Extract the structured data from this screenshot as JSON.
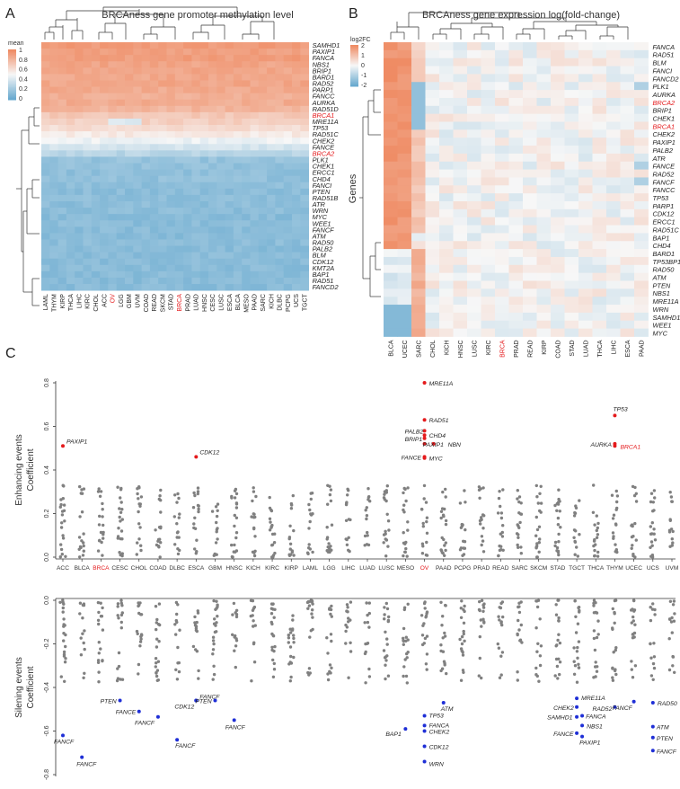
{
  "colors": {
    "meth_high": "#ef8a62",
    "meth_mid": "#f7f7f7",
    "meth_low": "#67a9cf",
    "highlight_red": "#e41a1c",
    "point_grey": "#808080",
    "point_red": "#e41a1c",
    "point_blue": "#1f2fd6"
  },
  "panel_letters": {
    "a": "A",
    "b": "B",
    "c": "C"
  },
  "chart_data": [
    {
      "id": "A",
      "type": "heatmap",
      "title": "BRCAness gene promoter methylation level",
      "legend_title": "mean",
      "legend_ticks": [
        "1",
        "0.8",
        "0.6",
        "0.4",
        "0.2",
        "0"
      ],
      "highlight_label": "BRCA1",
      "highlight_label_2": "BRCA2",
      "highlight_col": "OV",
      "highlight_col_2": "BRCA",
      "rows": [
        "SAMHD1",
        "PAXIP1",
        "FANCA",
        "NBS1",
        "BRIP1",
        "BARD1",
        "RAD52",
        "PARP1",
        "FANCC",
        "AURKA",
        "RAD51D",
        "BRCA1",
        "MRE11A",
        "TP53",
        "RAD51C",
        "CHEK2",
        "FANCE",
        "BRCA2",
        "PLK1",
        "CHEK1",
        "ERCC1",
        "CHD4",
        "FANCI",
        "PTEN",
        "RAD51B",
        "ATR",
        "WRN",
        "MYC",
        "WEE1",
        "FANCF",
        "ATM",
        "RAD50",
        "PALB2",
        "BLM",
        "CDK12",
        "KMT2A",
        "BAP1",
        "RAD51",
        "FANCD2"
      ],
      "columns": [
        "LAML",
        "THYM",
        "KIRP",
        "THCA",
        "LIHC",
        "KIRC",
        "CHOL",
        "ACC",
        "OV",
        "LGG",
        "GBM",
        "UVM",
        "COAD",
        "READ",
        "SKCM",
        "STAD",
        "BRCA",
        "PRAD",
        "LUAD",
        "HNSC",
        "CESC",
        "LUSC",
        "ESCA",
        "BLCA",
        "MESO",
        "PAAD",
        "SARC",
        "KICH",
        "DLBC",
        "PCPG",
        "UCS",
        "TGCT"
      ],
      "row_means": [
        0.92,
        0.9,
        0.91,
        0.88,
        0.87,
        0.86,
        0.87,
        0.85,
        0.83,
        0.84,
        0.8,
        0.72,
        0.68,
        0.62,
        0.56,
        0.47,
        0.38,
        0.28,
        0.16,
        0.15,
        0.14,
        0.15,
        0.14,
        0.13,
        0.14,
        0.13,
        0.13,
        0.12,
        0.12,
        0.12,
        0.12,
        0.13,
        0.12,
        0.12,
        0.12,
        0.12,
        0.12,
        0.12,
        0.12
      ],
      "scale": [
        0,
        1
      ]
    },
    {
      "id": "B",
      "type": "heatmap",
      "title": "BRCAness gene expression log(fold-change)",
      "legend_title": "log2FC",
      "legend_ticks": [
        "2",
        "1",
        "0",
        "-1",
        "-2"
      ],
      "ylabel": "Genes",
      "highlight_label": "BRCA2",
      "highlight_label_2": "BRCA1",
      "highlight_col": "BRCA",
      "rows": [
        "FANCA",
        "RAD51",
        "BLM",
        "FANCI",
        "FANCD2",
        "PLK1",
        "AURKA",
        "BRCA2",
        "BRIP1",
        "CHEK1",
        "BRCA1",
        "CHEK2",
        "PAXIP1",
        "PALB2",
        "ATR",
        "FANCE",
        "RAD52",
        "FANCF",
        "FANCC",
        "TP53",
        "PARP1",
        "CDK12",
        "ERCC1",
        "RAD51C",
        "BAP1",
        "CHD4",
        "BARD1",
        "TP53BP1",
        "RAD50",
        "ATM",
        "PTEN",
        "NBS1",
        "MRE11A",
        "WRN",
        "SAMHD1",
        "WEE1",
        "MYC"
      ],
      "columns": [
        "BLCA",
        "UCEC",
        "SARC",
        "CHOL",
        "KICH",
        "HNSC",
        "LUSC",
        "KIRC",
        "BRCA",
        "PRAD",
        "READ",
        "KIRP",
        "COAD",
        "STAD",
        "LUAD",
        "THCA",
        "LIHC",
        "ESCA",
        "PAAD"
      ],
      "scale": [
        -2,
        2
      ]
    },
    {
      "id": "C-top",
      "type": "scatter",
      "ylabel": "Enhancing events\nCoefficient",
      "ylim": [
        0,
        0.8
      ],
      "yticks": [
        "0.0",
        "0.2",
        "0.4",
        "0.6",
        "0.8"
      ],
      "categories": [
        "ACC",
        "BLCA",
        "BRCA",
        "CESC",
        "CHOL",
        "COAD",
        "DLBC",
        "ESCA",
        "GBM",
        "HNSC",
        "KICH",
        "KIRC",
        "KIRP",
        "LAML",
        "LGG",
        "LIHC",
        "LUAD",
        "LUSC",
        "MESO",
        "OV",
        "PAAD",
        "PCPG",
        "PRAD",
        "READ",
        "SARC",
        "SKCM",
        "STAD",
        "TGCT",
        "THCA",
        "THYM",
        "UCEC",
        "UCS",
        "UVM"
      ],
      "highlight_categories": [
        "BRCA",
        "OV"
      ],
      "labeled_points": [
        {
          "category": "ACC",
          "y": 0.51,
          "label": "PAXIP1"
        },
        {
          "category": "ESCA",
          "y": 0.46,
          "label": "CDK12"
        },
        {
          "category": "OV",
          "y": 0.8,
          "label": "MRE11A"
        },
        {
          "category": "OV",
          "y": 0.63,
          "label": "RAD51"
        },
        {
          "category": "OV",
          "y": 0.58,
          "label": "PALB2"
        },
        {
          "category": "OV",
          "y": 0.56,
          "label": "CHD4"
        },
        {
          "category": "OV",
          "y": 0.545,
          "label": "BRIP1"
        },
        {
          "category": "OV",
          "y": 0.52,
          "label": "PAXIP1"
        },
        {
          "category": "OV",
          "y": 0.52,
          "label": "NBN"
        },
        {
          "category": "OV",
          "y": 0.46,
          "label": "FANCE"
        },
        {
          "category": "OV",
          "y": 0.455,
          "label": "MYC"
        },
        {
          "category": "THYM",
          "y": 0.65,
          "label": "TP53"
        },
        {
          "category": "THYM",
          "y": 0.52,
          "label": "AURKA"
        },
        {
          "category": "THYM",
          "y": 0.51,
          "label": "BRCA1"
        }
      ]
    },
    {
      "id": "C-bottom",
      "type": "scatter",
      "ylabel": "Silening events\nCoefficient",
      "ylim": [
        -0.8,
        0
      ],
      "yticks": [
        "0.0",
        "-0.2",
        "-0.4",
        "-0.6",
        "-0.8"
      ],
      "labeled_points": [
        {
          "category": "ACC",
          "y": -0.62,
          "label": "FANCF"
        },
        {
          "category": "BLCA",
          "y": -0.72,
          "label": "FANCF"
        },
        {
          "category": "CESC",
          "y": -0.46,
          "label": "PTEN"
        },
        {
          "category": "CHOL",
          "y": -0.51,
          "label": "FANCE"
        },
        {
          "category": "COAD",
          "y": -0.535,
          "label": "FANCF"
        },
        {
          "category": "DLBC",
          "y": -0.64,
          "label": "FANCF"
        },
        {
          "category": "ESCA",
          "y": -0.46,
          "label": "FANCF"
        },
        {
          "category": "ESCA",
          "y": -0.46,
          "label": "CDK12"
        },
        {
          "category": "GBM",
          "y": -0.46,
          "label": "PTEN"
        },
        {
          "category": "HNSC",
          "y": -0.55,
          "label": "FANCF"
        },
        {
          "category": "MESO",
          "y": -0.59,
          "label": "BAP1"
        },
        {
          "category": "OV",
          "y": -0.53,
          "label": "TP53"
        },
        {
          "category": "OV",
          "y": -0.575,
          "label": "FANCA"
        },
        {
          "category": "OV",
          "y": -0.6,
          "label": "CHEK2"
        },
        {
          "category": "OV",
          "y": -0.67,
          "label": "CDK12"
        },
        {
          "category": "OV",
          "y": -0.74,
          "label": "WRN"
        },
        {
          "category": "PAAD",
          "y": -0.47,
          "label": "ATM"
        },
        {
          "category": "TGCT",
          "y": -0.45,
          "label": "MRE11A"
        },
        {
          "category": "TGCT",
          "y": -0.49,
          "label": "CHEK2"
        },
        {
          "category": "TGCT",
          "y": -0.53,
          "label": "FANCA"
        },
        {
          "category": "TGCT",
          "y": -0.535,
          "label": "SAMHD1"
        },
        {
          "category": "TGCT",
          "y": -0.575,
          "label": "NBS1"
        },
        {
          "category": "TGCT",
          "y": -0.61,
          "label": "FANCE"
        },
        {
          "category": "TGCT",
          "y": -0.625,
          "label": "PAXIP1"
        },
        {
          "category": "THYM",
          "y": -0.49,
          "label": "RAD52"
        },
        {
          "category": "UCEC",
          "y": -0.465,
          "label": "FANCF"
        },
        {
          "category": "UCS",
          "y": -0.47,
          "label": "RAD50"
        },
        {
          "category": "UCS",
          "y": -0.58,
          "label": "ATM"
        },
        {
          "category": "UCS",
          "y": -0.63,
          "label": "PTEN"
        },
        {
          "category": "UCS",
          "y": -0.69,
          "label": "FANCF"
        }
      ]
    }
  ]
}
